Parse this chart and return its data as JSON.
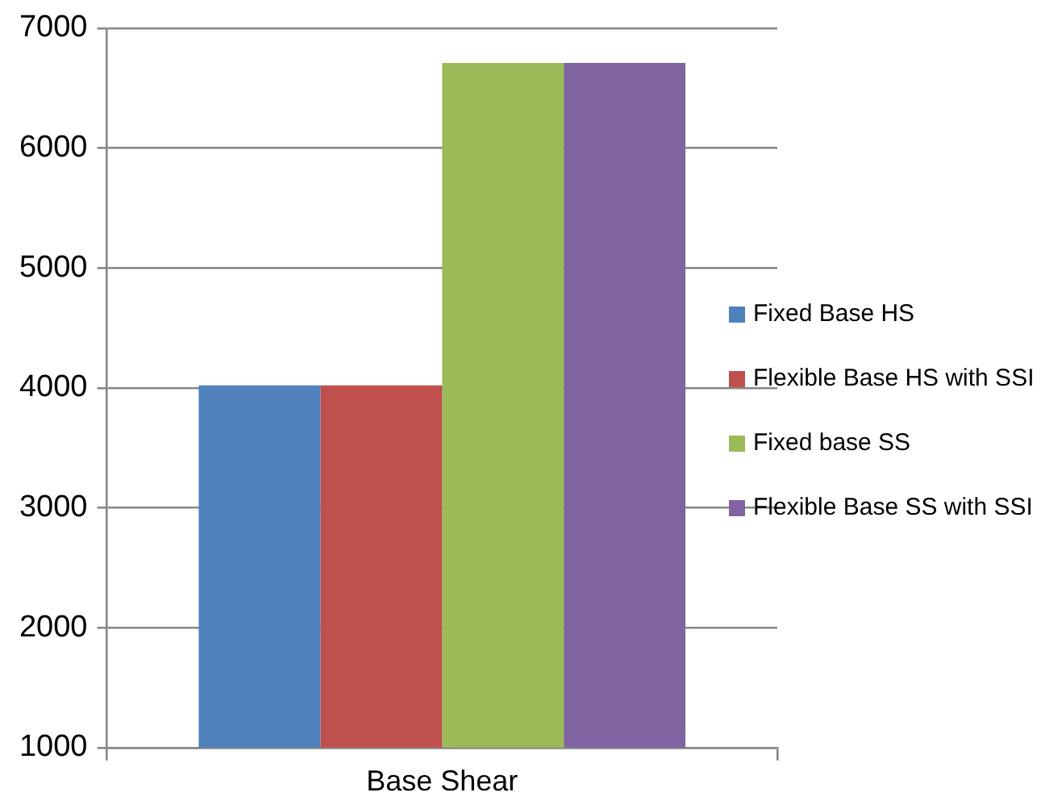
{
  "chart_data": {
    "type": "bar",
    "categories": [
      "Base Shear"
    ],
    "series": [
      {
        "name": "Fixed Base HS",
        "color": "#4f81bd",
        "values": [
          4020
        ]
      },
      {
        "name": "Flexible Base HS with SSI",
        "color": "#c0504d",
        "values": [
          4020
        ]
      },
      {
        "name": "Fixed base SS",
        "color": "#9bbb59",
        "values": [
          6710
        ]
      },
      {
        "name": "Flexible Base SS with SSI",
        "color": "#8064a2",
        "values": [
          6710
        ]
      }
    ],
    "ylim": [
      1000,
      7000
    ],
    "yticks": [
      1000,
      2000,
      3000,
      4000,
      5000,
      6000,
      7000
    ],
    "grid": "y",
    "legend": "right"
  }
}
